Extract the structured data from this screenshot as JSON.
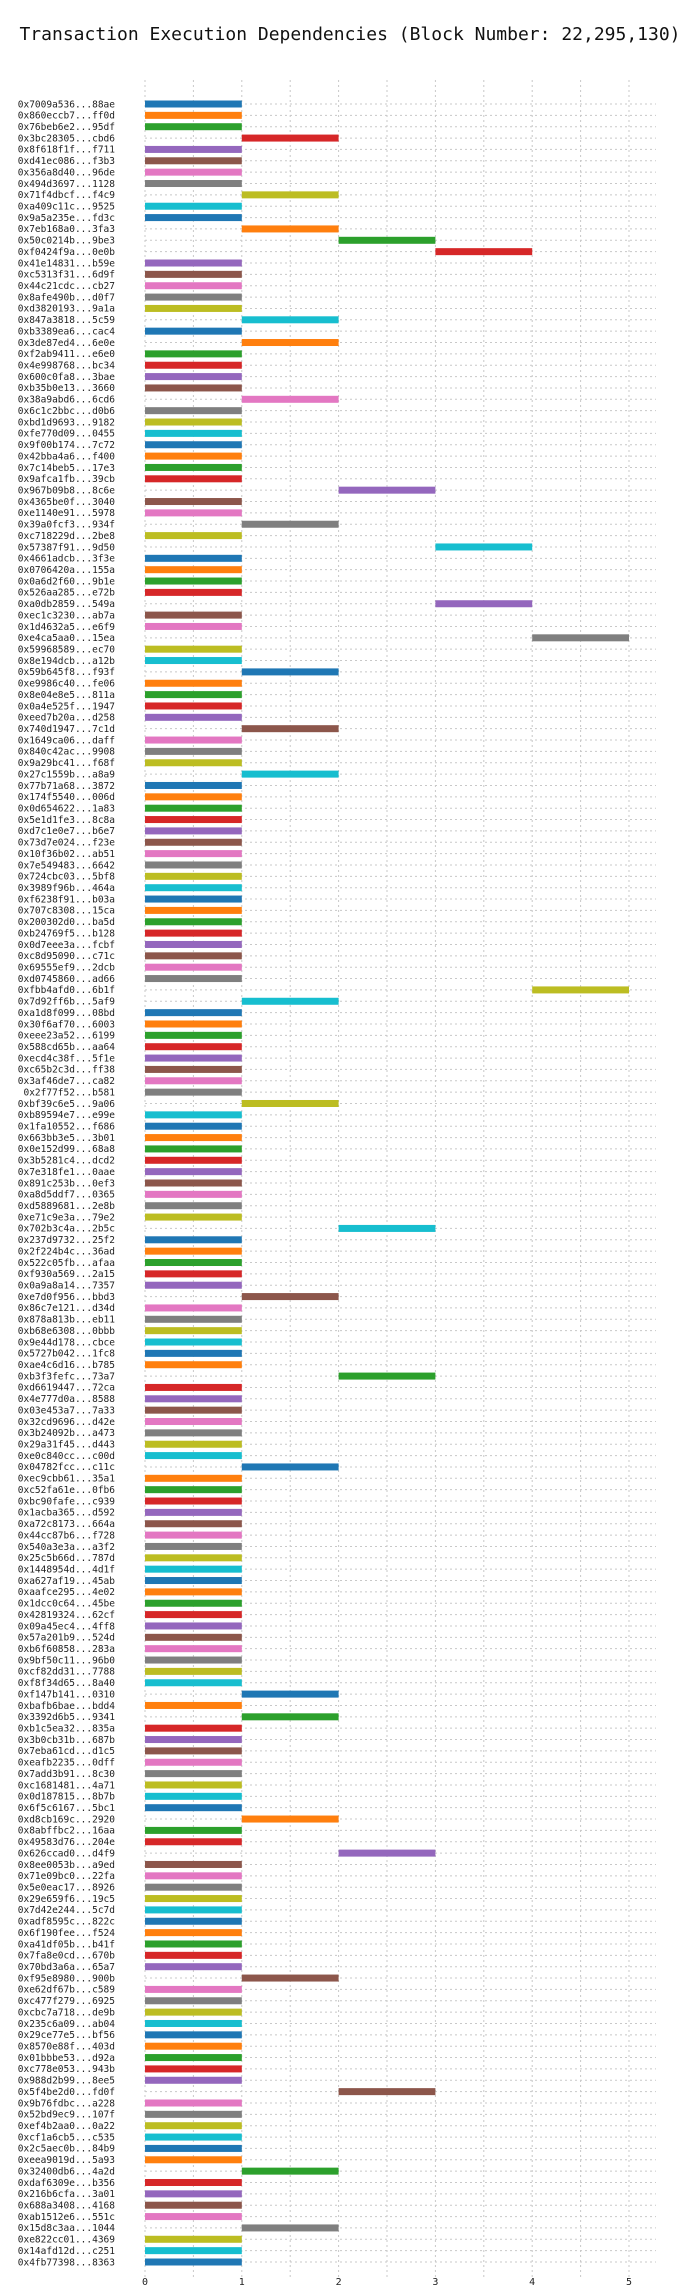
{
  "chart_data": {
    "type": "bar",
    "orientation": "horizontal",
    "title": "Transaction Execution Dependencies (Block Number: 22,295,130)",
    "xlim": [
      0,
      5.3
    ],
    "xticks": [
      0,
      1,
      2,
      3,
      4,
      5
    ],
    "grid": true,
    "palette": [
      "#1f77b4",
      "#ff7f0e",
      "#2ca02c",
      "#d62728",
      "#9467bd",
      "#8c564b",
      "#e377c2",
      "#7f7f7f",
      "#bcbd22",
      "#17becf"
    ],
    "transactions": [
      {
        "label": "0x7009a536...88ae",
        "start": 0,
        "end": 1
      },
      {
        "label": "0x860eccb7...ff0d",
        "start": 0,
        "end": 1
      },
      {
        "label": "0x76beb6e2...95df",
        "start": 0,
        "end": 1
      },
      {
        "label": "0x3bc28305...cbd6",
        "start": 1,
        "end": 2
      },
      {
        "label": "0x8f618f1f...f711",
        "start": 0,
        "end": 1
      },
      {
        "label": "0xd41ec086...f3b3",
        "start": 0,
        "end": 1
      },
      {
        "label": "0x356a8d40...96de",
        "start": 0,
        "end": 1
      },
      {
        "label": "0x494d3697...1128",
        "start": 0,
        "end": 1
      },
      {
        "label": "0x71f4dbcf...f4c9",
        "start": 1,
        "end": 2
      },
      {
        "label": "0xa409c11c...9525",
        "start": 0,
        "end": 1
      },
      {
        "label": "0x9a5a235e...fd3c",
        "start": 0,
        "end": 1
      },
      {
        "label": "0x7eb168a0...3fa3",
        "start": 1,
        "end": 2
      },
      {
        "label": "0x50c0214b...9be3",
        "start": 2,
        "end": 3
      },
      {
        "label": "0xf0424f9a...0e0b",
        "start": 3,
        "end": 4
      },
      {
        "label": "0x41e14831...b59e",
        "start": 0,
        "end": 1
      },
      {
        "label": "0xc5313f31...6d9f",
        "start": 0,
        "end": 1
      },
      {
        "label": "0x44c21cdc...cb27",
        "start": 0,
        "end": 1
      },
      {
        "label": "0x8afe490b...d0f7",
        "start": 0,
        "end": 1
      },
      {
        "label": "0xd3820193...9a1a",
        "start": 0,
        "end": 1
      },
      {
        "label": "0x847a3818...5c59",
        "start": 1,
        "end": 2
      },
      {
        "label": "0xb3389ea6...cac4",
        "start": 0,
        "end": 1
      },
      {
        "label": "0x3de87ed4...6e0e",
        "start": 1,
        "end": 2
      },
      {
        "label": "0xf2ab9411...e6e0",
        "start": 0,
        "end": 1
      },
      {
        "label": "0x4e998768...bc34",
        "start": 0,
        "end": 1
      },
      {
        "label": "0x600c0fa8...3bae",
        "start": 0,
        "end": 1
      },
      {
        "label": "0xb35b0e13...3660",
        "start": 0,
        "end": 1
      },
      {
        "label": "0x38a9abd6...6cd6",
        "start": 1,
        "end": 2
      },
      {
        "label": "0x6c1c2bbc...d0b6",
        "start": 0,
        "end": 1
      },
      {
        "label": "0xbd1d9693...9182",
        "start": 0,
        "end": 1
      },
      {
        "label": "0xfe770d09...0455",
        "start": 0,
        "end": 1
      },
      {
        "label": "0x9f00b174...7c72",
        "start": 0,
        "end": 1
      },
      {
        "label": "0x42bba4a6...f400",
        "start": 0,
        "end": 1
      },
      {
        "label": "0x7c14beb5...17e3",
        "start": 0,
        "end": 1
      },
      {
        "label": "0x9afca1fb...39cb",
        "start": 0,
        "end": 1
      },
      {
        "label": "0x967b09b8...8c6e",
        "start": 2,
        "end": 3
      },
      {
        "label": "0x4365be0f...3040",
        "start": 0,
        "end": 1
      },
      {
        "label": "0xe1140e91...5978",
        "start": 0,
        "end": 1
      },
      {
        "label": "0x39a0fcf3...934f",
        "start": 1,
        "end": 2
      },
      {
        "label": "0xc718229d...2be8",
        "start": 0,
        "end": 1
      },
      {
        "label": "0x57387f91...9d50",
        "start": 3,
        "end": 4
      },
      {
        "label": "0x4661adcb...3f3e",
        "start": 0,
        "end": 1
      },
      {
        "label": "0x0706420a...155a",
        "start": 0,
        "end": 1
      },
      {
        "label": "0x0a6d2f60...9b1e",
        "start": 0,
        "end": 1
      },
      {
        "label": "0x526aa285...e72b",
        "start": 0,
        "end": 1
      },
      {
        "label": "0xa0db2859...549a",
        "start": 3,
        "end": 4
      },
      {
        "label": "0xec1c3230...ab7a",
        "start": 0,
        "end": 1
      },
      {
        "label": "0x1d4632a5...e6f9",
        "start": 0,
        "end": 1
      },
      {
        "label": "0xe4ca5aa0...15ea",
        "start": 4,
        "end": 5
      },
      {
        "label": "0x59968589...ec70",
        "start": 0,
        "end": 1
      },
      {
        "label": "0x8e194dcb...a12b",
        "start": 0,
        "end": 1
      },
      {
        "label": "0x59b645f8...f93f",
        "start": 1,
        "end": 2
      },
      {
        "label": "0xe9986c40...fe06",
        "start": 0,
        "end": 1
      },
      {
        "label": "0x8e04e8e5...811a",
        "start": 0,
        "end": 1
      },
      {
        "label": "0x0a4e525f...1947",
        "start": 0,
        "end": 1
      },
      {
        "label": "0xeed7b20a...d258",
        "start": 0,
        "end": 1
      },
      {
        "label": "0x740d1947...7c1d",
        "start": 1,
        "end": 2
      },
      {
        "label": "0x1649ca06...daff",
        "start": 0,
        "end": 1
      },
      {
        "label": "0x840c42ac...9908",
        "start": 0,
        "end": 1
      },
      {
        "label": "0x9a29bc41...f68f",
        "start": 0,
        "end": 1
      },
      {
        "label": "0x27c1559b...a8a9",
        "start": 1,
        "end": 2
      },
      {
        "label": "0x77b71a68...3872",
        "start": 0,
        "end": 1
      },
      {
        "label": "0x174f5540...006d",
        "start": 0,
        "end": 1
      },
      {
        "label": "0x0d654622...1a83",
        "start": 0,
        "end": 1
      },
      {
        "label": "0x5e1d1fe3...8c8a",
        "start": 0,
        "end": 1
      },
      {
        "label": "0xd7c1e0e7...b6e7",
        "start": 0,
        "end": 1
      },
      {
        "label": "0x73d7e024...f23e",
        "start": 0,
        "end": 1
      },
      {
        "label": "0x10f36b02...ab51",
        "start": 0,
        "end": 1
      },
      {
        "label": "0x7e549483...6642",
        "start": 0,
        "end": 1
      },
      {
        "label": "0x724cbc03...5bf8",
        "start": 0,
        "end": 1
      },
      {
        "label": "0x3989f96b...464a",
        "start": 0,
        "end": 1
      },
      {
        "label": "0xf6238f91...b03a",
        "start": 0,
        "end": 1
      },
      {
        "label": "0x707c8308...15ca",
        "start": 0,
        "end": 1
      },
      {
        "label": "0x200302d0...ba5d",
        "start": 0,
        "end": 1
      },
      {
        "label": "0xb24769f5...b128",
        "start": 0,
        "end": 1
      },
      {
        "label": "0x0d7eee3a...fcbf",
        "start": 0,
        "end": 1
      },
      {
        "label": "0xc8d95090...c71c",
        "start": 0,
        "end": 1
      },
      {
        "label": "0x69555ef9...2dcb",
        "start": 0,
        "end": 1
      },
      {
        "label": "0xd0745860...ad66",
        "start": 0,
        "end": 1
      },
      {
        "label": "0xfbb4afd0...6b1f",
        "start": 4,
        "end": 5
      },
      {
        "label": "0x7d92ff6b...5af9",
        "start": 1,
        "end": 2
      },
      {
        "label": "0xa1d8f099...08bd",
        "start": 0,
        "end": 1
      },
      {
        "label": "0x30f6af70...6003",
        "start": 0,
        "end": 1
      },
      {
        "label": "0xeee23a52...6199",
        "start": 0,
        "end": 1
      },
      {
        "label": "0x588cd65b...aa64",
        "start": 0,
        "end": 1
      },
      {
        "label": "0xecd4c38f...5f1e",
        "start": 0,
        "end": 1
      },
      {
        "label": "0xc65b2c3d...ff38",
        "start": 0,
        "end": 1
      },
      {
        "label": "0x3af46de7...ca82",
        "start": 0,
        "end": 1
      },
      {
        "label": "0x2f77f52...b581",
        "start": 0,
        "end": 1
      },
      {
        "label": "0xbf39c6e5...9a06",
        "start": 1,
        "end": 2
      },
      {
        "label": "0xb89594e7...e99e",
        "start": 0,
        "end": 1
      },
      {
        "label": "0x1fa10552...f686",
        "start": 0,
        "end": 1
      },
      {
        "label": "0x663bb3e5...3b01",
        "start": 0,
        "end": 1
      },
      {
        "label": "0x0e152d99...68a8",
        "start": 0,
        "end": 1
      },
      {
        "label": "0x3b5281c4...dcd2",
        "start": 0,
        "end": 1
      },
      {
        "label": "0x7e318fe1...0aae",
        "start": 0,
        "end": 1
      },
      {
        "label": "0x891c253b...0ef3",
        "start": 0,
        "end": 1
      },
      {
        "label": "0xa8d5ddf7...0365",
        "start": 0,
        "end": 1
      },
      {
        "label": "0xd5889681...2e8b",
        "start": 0,
        "end": 1
      },
      {
        "label": "0xe71c9e3a...79e2",
        "start": 0,
        "end": 1
      },
      {
        "label": "0x702b3c4a...2b5c",
        "start": 2,
        "end": 3
      },
      {
        "label": "0x237d9732...25f2",
        "start": 0,
        "end": 1
      },
      {
        "label": "0x2f224b4c...36ad",
        "start": 0,
        "end": 1
      },
      {
        "label": "0x522c05fb...afaa",
        "start": 0,
        "end": 1
      },
      {
        "label": "0xf930a569...2a15",
        "start": 0,
        "end": 1
      },
      {
        "label": "0x0a9a8a14...7357",
        "start": 0,
        "end": 1
      },
      {
        "label": "0xe7d0f956...bbd3",
        "start": 1,
        "end": 2
      },
      {
        "label": "0x86c7e121...d34d",
        "start": 0,
        "end": 1
      },
      {
        "label": "0x878a813b...eb11",
        "start": 0,
        "end": 1
      },
      {
        "label": "0xb68e6308...0bbb",
        "start": 0,
        "end": 1
      },
      {
        "label": "0x9e44d178...cbce",
        "start": 0,
        "end": 1
      },
      {
        "label": "0x5727b042...1fc8",
        "start": 0,
        "end": 1
      },
      {
        "label": "0xae4c6d16...b785",
        "start": 0,
        "end": 1
      },
      {
        "label": "0xb3f3fefc...73a7",
        "start": 2,
        "end": 3
      },
      {
        "label": "0xd6619447...72ca",
        "start": 0,
        "end": 1
      },
      {
        "label": "0x4e777d0a...8588",
        "start": 0,
        "end": 1
      },
      {
        "label": "0x03e453a7...7a33",
        "start": 0,
        "end": 1
      },
      {
        "label": "0x32cd9696...d42e",
        "start": 0,
        "end": 1
      },
      {
        "label": "0x3b24092b...a473",
        "start": 0,
        "end": 1
      },
      {
        "label": "0x29a31f45...d443",
        "start": 0,
        "end": 1
      },
      {
        "label": "0xe0c840cc...c00d",
        "start": 0,
        "end": 1
      },
      {
        "label": "0x04782fcc...c11c",
        "start": 1,
        "end": 2
      },
      {
        "label": "0xec9cbb61...35a1",
        "start": 0,
        "end": 1
      },
      {
        "label": "0xc52fa61e...0fb6",
        "start": 0,
        "end": 1
      },
      {
        "label": "0xbc90fafe...c939",
        "start": 0,
        "end": 1
      },
      {
        "label": "0x1acba365...d592",
        "start": 0,
        "end": 1
      },
      {
        "label": "0xa72c8173...664a",
        "start": 0,
        "end": 1
      },
      {
        "label": "0x44cc87b6...f728",
        "start": 0,
        "end": 1
      },
      {
        "label": "0x540a3e3a...a3f2",
        "start": 0,
        "end": 1
      },
      {
        "label": "0x25c5b66d...787d",
        "start": 0,
        "end": 1
      },
      {
        "label": "0x1448954d...4d1f",
        "start": 0,
        "end": 1
      },
      {
        "label": "0xa627af19...45ab",
        "start": 0,
        "end": 1
      },
      {
        "label": "0xaafce295...4e02",
        "start": 0,
        "end": 1
      },
      {
        "label": "0x1dcc0c64...45be",
        "start": 0,
        "end": 1
      },
      {
        "label": "0x42819324...62cf",
        "start": 0,
        "end": 1
      },
      {
        "label": "0x09a45ec4...4ff8",
        "start": 0,
        "end": 1
      },
      {
        "label": "0x57a201b9...524d",
        "start": 0,
        "end": 1
      },
      {
        "label": "0xb6f60858...283a",
        "start": 0,
        "end": 1
      },
      {
        "label": "0x9bf50c11...96b0",
        "start": 0,
        "end": 1
      },
      {
        "label": "0xcf82dd31...7788",
        "start": 0,
        "end": 1
      },
      {
        "label": "0xf8f34d65...8a40",
        "start": 0,
        "end": 1
      },
      {
        "label": "0xf147b141...0310",
        "start": 1,
        "end": 2
      },
      {
        "label": "0xbafb6bae...bdd4",
        "start": 0,
        "end": 1
      },
      {
        "label": "0x3392d6b5...9341",
        "start": 1,
        "end": 2
      },
      {
        "label": "0xb1c5ea32...835a",
        "start": 0,
        "end": 1
      },
      {
        "label": "0x3b0cb31b...687b",
        "start": 0,
        "end": 1
      },
      {
        "label": "0x7eba61cd...d1c5",
        "start": 0,
        "end": 1
      },
      {
        "label": "0xeafb2235...0dff",
        "start": 0,
        "end": 1
      },
      {
        "label": "0x7add3b91...8c30",
        "start": 0,
        "end": 1
      },
      {
        "label": "0xc1681481...4a71",
        "start": 0,
        "end": 1
      },
      {
        "label": "0x0d187815...8b7b",
        "start": 0,
        "end": 1
      },
      {
        "label": "0x6f5c6167...5bc1",
        "start": 0,
        "end": 1
      },
      {
        "label": "0xd8cb169c...2920",
        "start": 1,
        "end": 2
      },
      {
        "label": "0x8abffbc2...16aa",
        "start": 0,
        "end": 1
      },
      {
        "label": "0x49583d76...204e",
        "start": 0,
        "end": 1
      },
      {
        "label": "0x626ccad0...d4f9",
        "start": 2,
        "end": 3
      },
      {
        "label": "0x8ee0053b...a9ed",
        "start": 0,
        "end": 1
      },
      {
        "label": "0x71e09bc0...22fa",
        "start": 0,
        "end": 1
      },
      {
        "label": "0x5e0eac17...8926",
        "start": 0,
        "end": 1
      },
      {
        "label": "0x29e659f6...19c5",
        "start": 0,
        "end": 1
      },
      {
        "label": "0x7d42e244...5c7d",
        "start": 0,
        "end": 1
      },
      {
        "label": "0xadf8595c...822c",
        "start": 0,
        "end": 1
      },
      {
        "label": "0x6f190fee...f524",
        "start": 0,
        "end": 1
      },
      {
        "label": "0xa41df05b...b41f",
        "start": 0,
        "end": 1
      },
      {
        "label": "0x7fa8e0cd...670b",
        "start": 0,
        "end": 1
      },
      {
        "label": "0x70bd3a6a...65a7",
        "start": 0,
        "end": 1
      },
      {
        "label": "0xf95e8980...900b",
        "start": 1,
        "end": 2
      },
      {
        "label": "0xe62df67b...c589",
        "start": 0,
        "end": 1
      },
      {
        "label": "0xc477f279...6925",
        "start": 0,
        "end": 1
      },
      {
        "label": "0xcbc7a718...de9b",
        "start": 0,
        "end": 1
      },
      {
        "label": "0x235c6a09...ab04",
        "start": 0,
        "end": 1
      },
      {
        "label": "0x29ce77e5...bf56",
        "start": 0,
        "end": 1
      },
      {
        "label": "0x8570e88f...403d",
        "start": 0,
        "end": 1
      },
      {
        "label": "0x01bbbe53...d92a",
        "start": 0,
        "end": 1
      },
      {
        "label": "0xc778e053...943b",
        "start": 0,
        "end": 1
      },
      {
        "label": "0x988d2b99...8ee5",
        "start": 0,
        "end": 1
      },
      {
        "label": "0x5f4be2d0...fd0f",
        "start": 2,
        "end": 3
      },
      {
        "label": "0x9b76fdbc...a228",
        "start": 0,
        "end": 1
      },
      {
        "label": "0x52bd9ec9...107f",
        "start": 0,
        "end": 1
      },
      {
        "label": "0xef4b2aa0...0a22",
        "start": 0,
        "end": 1
      },
      {
        "label": "0xcf1a6cb5...c535",
        "start": 0,
        "end": 1
      },
      {
        "label": "0x2c5aec0b...84b9",
        "start": 0,
        "end": 1
      },
      {
        "label": "0xeea9019d...5a93",
        "start": 0,
        "end": 1
      },
      {
        "label": "0x32400db6...4a2d",
        "start": 1,
        "end": 2
      },
      {
        "label": "0xdaf6309e...b356",
        "start": 0,
        "end": 1
      },
      {
        "label": "0x216b6cfa...3a01",
        "start": 0,
        "end": 1
      },
      {
        "label": "0x688a3408...4168",
        "start": 0,
        "end": 1
      },
      {
        "label": "0xab1512e6...551c",
        "start": 0,
        "end": 1
      },
      {
        "label": "0x15d8c3aa...1044",
        "start": 1,
        "end": 2
      },
      {
        "label": "0xe822cc01...4369",
        "start": 0,
        "end": 1
      },
      {
        "label": "0x14afd12d...c251",
        "start": 0,
        "end": 1
      },
      {
        "label": "0x4fb77398...8363",
        "start": 0,
        "end": 1
      }
    ]
  }
}
